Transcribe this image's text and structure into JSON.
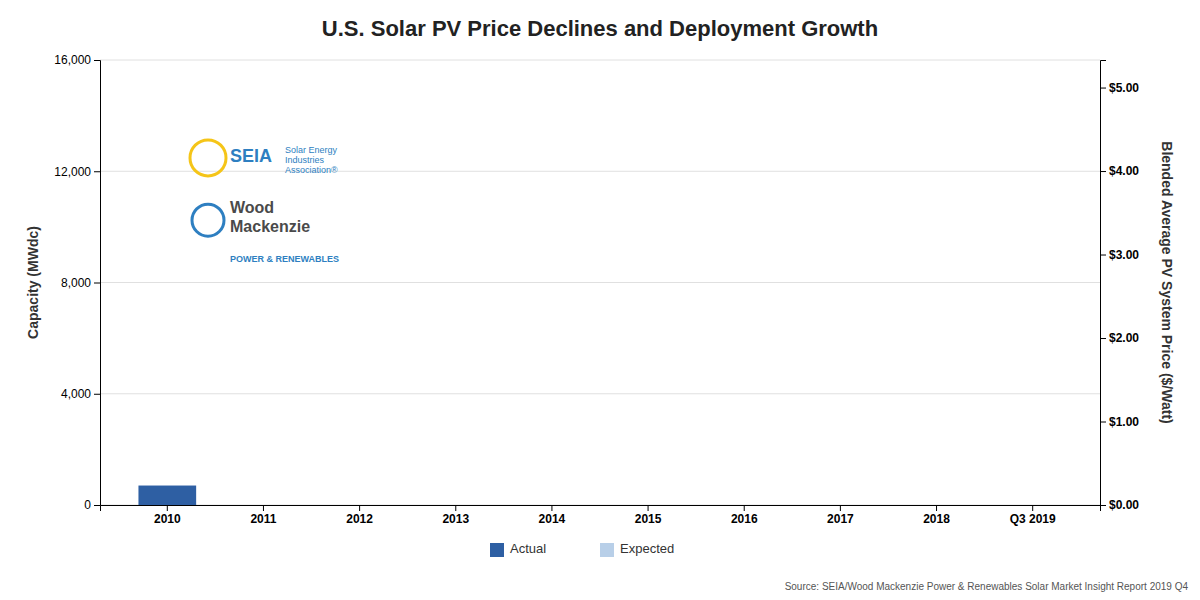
{
  "chart_data": {
    "type": "bar",
    "title": "U.S. Solar PV Price Declines and Deployment Growth",
    "ylabel": "Capacity (MWdc)",
    "y2label": "Blended Average PV System Price ($/Watt)",
    "categories": [
      "2010",
      "2011",
      "2012",
      "2013",
      "2014",
      "2015",
      "2016",
      "2017",
      "2018",
      "Q3 2019"
    ],
    "series": [
      {
        "name": "Actual",
        "color": "#2e5fa3",
        "values": [
          700,
          0,
          0,
          0,
          0,
          0,
          0,
          0,
          0,
          0
        ]
      },
      {
        "name": "Expected",
        "color": "#b8cfe8",
        "values": [
          0,
          0,
          0,
          0,
          0,
          0,
          0,
          0,
          0,
          0
        ]
      }
    ],
    "ylim": [
      0,
      16000
    ],
    "yticks": [
      0,
      {
        "value": 4000,
        "label": "4,000"
      },
      {
        "value": 8000,
        "label": "8,000"
      },
      {
        "value": 12000,
        "label": "12,000"
      },
      {
        "value": 16000,
        "label": "16,000"
      }
    ],
    "y2lim": [
      0,
      5.33
    ],
    "y2ticks": [
      {
        "value": 0.0,
        "label": "$0.00"
      },
      {
        "value": 1.0,
        "label": "$1.00"
      },
      {
        "value": 2.0,
        "label": "$2.00"
      },
      {
        "value": 3.0,
        "label": "$3.00"
      },
      {
        "value": 4.0,
        "label": "$4.00"
      },
      {
        "value": 5.0,
        "label": "$5.00"
      }
    ],
    "grid": true,
    "legend": "bottom",
    "annotations": [
      "SEIA",
      "Solar Energy\nIndustries\nAssociation®",
      "Wood\nMackenzie",
      "POWER & RENEWABLES"
    ],
    "source": "Source: SEIA/Wood Mackenzie Power & Renewables Solar Market Insight Report 2019 Q4"
  }
}
